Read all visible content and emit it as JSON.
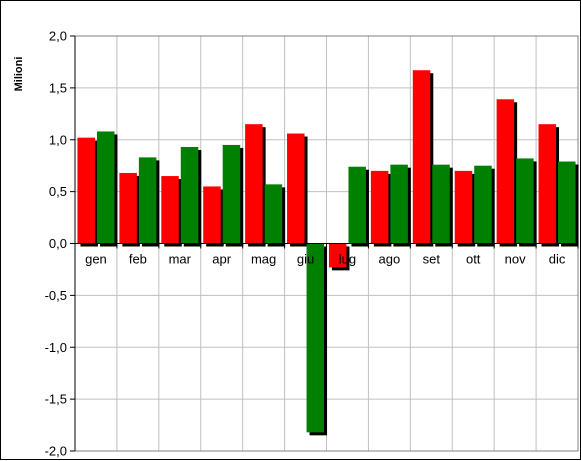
{
  "chart_data": {
    "type": "bar",
    "title": "",
    "xlabel": "",
    "ylabel": "Milioni",
    "categories": [
      "gen",
      "feb",
      "mar",
      "apr",
      "mag",
      "giu",
      "lug",
      "ago",
      "set",
      "ott",
      "nov",
      "dic"
    ],
    "series": [
      {
        "color": "#ff0000",
        "values": [
          1.02,
          0.68,
          0.65,
          0.55,
          1.15,
          1.06,
          -0.23,
          0.7,
          1.67,
          0.7,
          1.39,
          1.15
        ]
      },
      {
        "color": "#008000",
        "values": [
          1.08,
          0.83,
          0.93,
          0.95,
          0.57,
          -1.82,
          0.74,
          0.76,
          0.76,
          0.75,
          0.82,
          0.79
        ]
      }
    ],
    "ylim": [
      -2.0,
      2.0
    ],
    "yticks": [
      "2,0",
      "1,5",
      "1,0",
      "0,5",
      "0,0",
      "-0,5",
      "-1,0",
      "-1,5",
      "-2,0"
    ],
    "grid": true,
    "legend": "none"
  }
}
